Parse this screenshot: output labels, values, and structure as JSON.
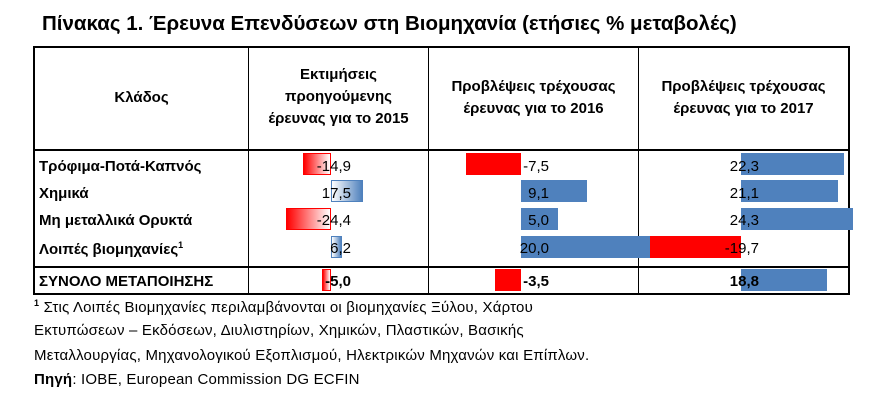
{
  "title": "Πίνακας 1. Έρευνα Επενδύσεων στη Βιομηχανία (ετήσιες % μεταβολές)",
  "table": {
    "col_sector": "Κλάδος",
    "col_2015": [
      "Εκτιμήσεις",
      "προηγούμενης",
      "έρευνας για το 2015"
    ],
    "col_2016": [
      "Προβλέψεις τρέχουσας",
      "έρευνας για το 2016"
    ],
    "col_2017": [
      "Προβλέψεις τρέχουσας",
      "έρευνας για το 2017"
    ],
    "rows": [
      {
        "label": "Τρόφιμα-Ποτά-Καπνός",
        "sup": "",
        "v2015": "-14,9",
        "v2016": "-7,5",
        "v2017": "22,3"
      },
      {
        "label": "Χημικά",
        "sup": "",
        "v2015": "17,5",
        "v2016": "9,1",
        "v2017": "21,1"
      },
      {
        "label": "Μη μεταλλικά Ορυκτά",
        "sup": "",
        "v2015": "-24,4",
        "v2016": "5,0",
        "v2017": "24,3"
      },
      {
        "label": "Λοιπές βιομηχανίες",
        "sup": "1",
        "v2015": "6,2",
        "v2016": "20,0",
        "v2017": "-19,7"
      }
    ],
    "total": {
      "label": "ΣΥΝΟΛΟ ΜΕΤΑΠΟΙΗΣΗΣ",
      "v2015": "-5,0",
      "v2016": "-3,5",
      "v2017": "18,8"
    }
  },
  "chart_data": {
    "type": "table",
    "columns": [
      "Εκτιμήσεις προηγούμενης έρευνας για το 2015",
      "Προβλέψεις τρέχουσας έρευνας για το 2016",
      "Προβλέψεις τρέχουσας έρευνας για το 2017"
    ],
    "rows": [
      "Τρόφιμα-Ποτά-Καπνός",
      "Χημικά",
      "Μη μεταλλικά Ορυκτά",
      "Λοιπές βιομηχανίες",
      "ΣΥΝΟΛΟ ΜΕΤΑΠΟΙΗΣΗΣ"
    ],
    "values": [
      [
        -14.9,
        -7.5,
        22.3
      ],
      [
        17.5,
        9.1,
        21.1
      ],
      [
        -24.4,
        5.0,
        24.3
      ],
      [
        6.2,
        20.0,
        -19.7
      ],
      [
        -5.0,
        -3.5,
        18.8
      ]
    ],
    "colors": {
      "positive": "#4f81bd",
      "negative": "#ff0000"
    }
  },
  "footnote": {
    "marker": "1",
    "line1": " Στις Λοιπές Βιομηχανίες περιλαμβάνονται οι βιομηχανίες Ξύλου, Χάρτου",
    "line2": "Εκτυπώσεων – Εκδόσεων, Διυλιστηρίων, Χημικών, Πλαστικών, Βασικής",
    "line3": "Μεταλλουργίας, Μηχανολογικού Εξοπλισμού, Ηλεκτρικών Μηχανών και Επίπλων."
  },
  "source": {
    "label": "Πηγή",
    "text": ": IOBE, European Commission DG ECFIN"
  }
}
